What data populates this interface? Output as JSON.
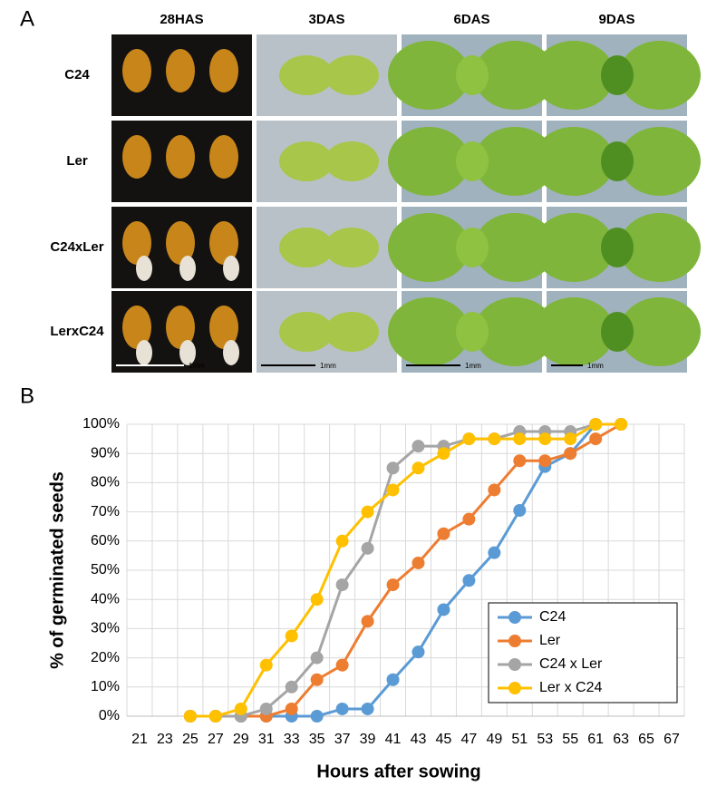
{
  "panel_a": {
    "label": "A",
    "columns": [
      "28HAS",
      "3DAS",
      "6DAS",
      "9DAS"
    ],
    "rows": [
      "C24",
      "Ler",
      "C24xLer",
      "LerxC24"
    ],
    "scale_labels": [
      "1mm",
      "1mm",
      "1mm",
      "1mm"
    ]
  },
  "panel_b": {
    "label": "B"
  },
  "chart_data": {
    "type": "line",
    "xlabel": "Hours after sowing",
    "ylabel": "% of germinated seeds",
    "categories": [
      "21",
      "23",
      "25",
      "27",
      "29",
      "31",
      "33",
      "35",
      "37",
      "39",
      "41",
      "43",
      "45",
      "47",
      "49",
      "51",
      "53",
      "55",
      "61",
      "63",
      "65",
      "67"
    ],
    "series": [
      {
        "name": "C24",
        "color": "#5b9bd5",
        "values": [
          null,
          null,
          0,
          0,
          0,
          0,
          0,
          0,
          2.5,
          2.5,
          12.5,
          22,
          36.5,
          46.5,
          56,
          70.5,
          85.5,
          90,
          100,
          100,
          null,
          null
        ]
      },
      {
        "name": "Ler",
        "color": "#ed7d31",
        "values": [
          null,
          null,
          0,
          0,
          0,
          0,
          2.5,
          12.5,
          17.5,
          32.5,
          45,
          52.5,
          62.5,
          67.5,
          77.5,
          87.5,
          87.5,
          90,
          95,
          100,
          null,
          null
        ]
      },
      {
        "name": "C24 x Ler",
        "color": "#a5a5a5",
        "values": [
          null,
          null,
          0,
          0,
          0,
          2.5,
          10,
          20,
          45,
          57.5,
          85,
          92.5,
          92.5,
          95,
          95,
          97.5,
          97.5,
          97.5,
          100,
          100,
          null,
          null
        ]
      },
      {
        "name": "Ler x C24",
        "color": "#ffc000",
        "values": [
          null,
          null,
          0,
          0,
          2.5,
          17.5,
          27.5,
          40,
          60,
          70,
          77.5,
          85,
          90,
          95,
          95,
          95,
          95,
          95,
          100,
          100,
          null,
          null
        ]
      }
    ],
    "ylim": [
      0,
      100
    ],
    "yticks": [
      {
        "value": 0,
        "label": "0%"
      },
      {
        "value": 10,
        "label": "10%"
      },
      {
        "value": 20,
        "label": "20%"
      },
      {
        "value": 30,
        "label": "30%"
      },
      {
        "value": 40,
        "label": "40%"
      },
      {
        "value": 50,
        "label": "50%"
      },
      {
        "value": 60,
        "label": "60%"
      },
      {
        "value": 70,
        "label": "70%"
      },
      {
        "value": 80,
        "label": "80%"
      },
      {
        "value": 90,
        "label": "90%"
      },
      {
        "value": 100,
        "label": "100%"
      }
    ],
    "grid": true,
    "legend": "lower right"
  }
}
